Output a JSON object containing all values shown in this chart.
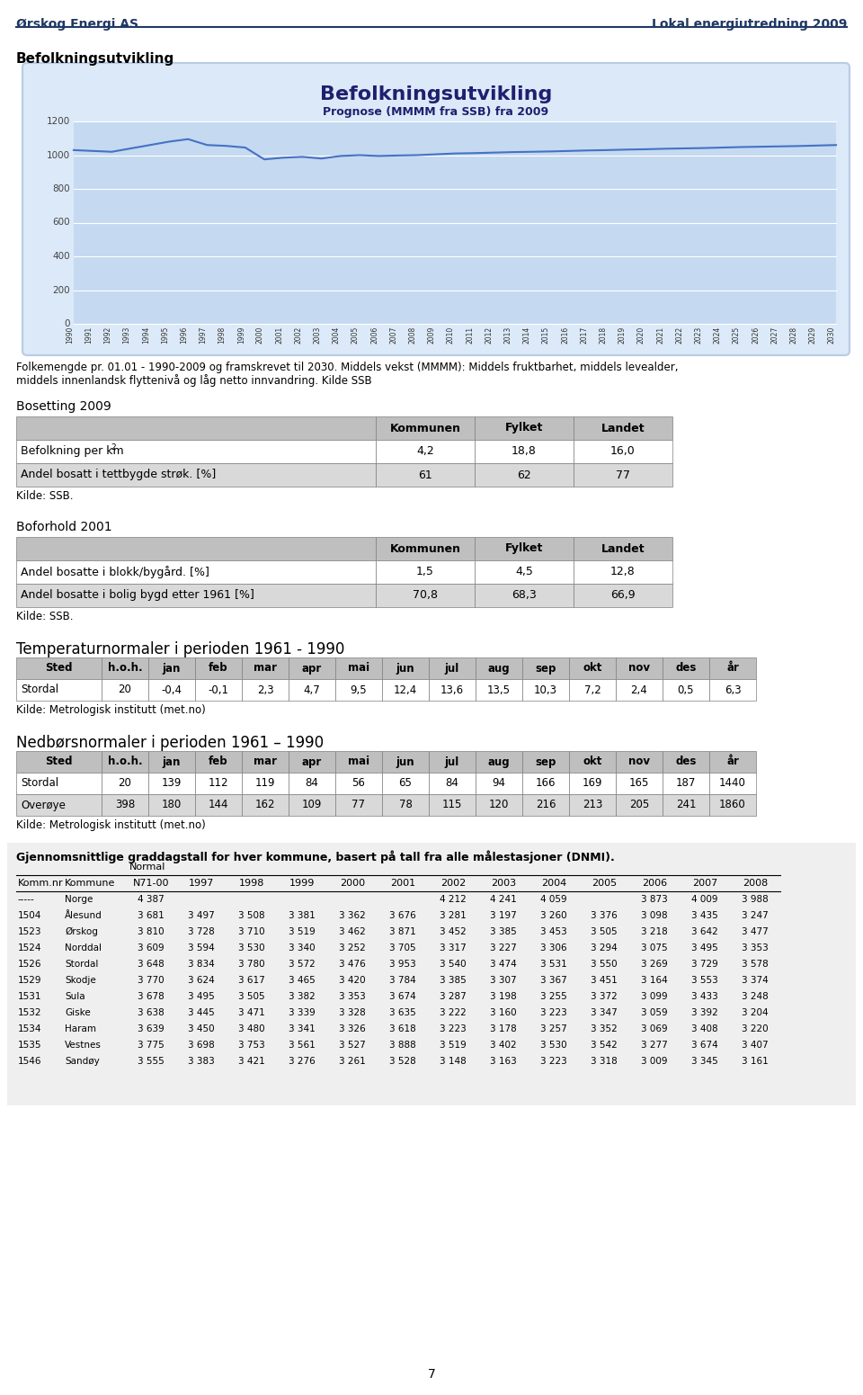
{
  "header_left": "Ørskog Energi AS",
  "header_right": "Lokal energiutredning 2009",
  "section1_title": "Befolkningsutvikling",
  "chart_title": "Befolkningsutvikling",
  "chart_subtitle": "Prognose (MMMM fra SSB) fra 2009",
  "chart_years": [
    1990,
    1991,
    1992,
    1993,
    1994,
    1995,
    1996,
    1997,
    1998,
    1999,
    2000,
    2001,
    2002,
    2003,
    2004,
    2005,
    2006,
    2007,
    2008,
    2009,
    2010,
    2011,
    2012,
    2013,
    2014,
    2015,
    2016,
    2017,
    2018,
    2019,
    2020,
    2021,
    2022,
    2023,
    2024,
    2025,
    2026,
    2027,
    2028,
    2029,
    2030
  ],
  "chart_values": [
    1030,
    1025,
    1020,
    1040,
    1060,
    1080,
    1095,
    1060,
    1055,
    1045,
    975,
    985,
    990,
    980,
    995,
    1000,
    995,
    998,
    1000,
    1005,
    1010,
    1012,
    1015,
    1018,
    1020,
    1022,
    1025,
    1028,
    1030,
    1033,
    1035,
    1038,
    1040,
    1042,
    1045,
    1048,
    1050,
    1052,
    1054,
    1057,
    1060
  ],
  "chart_ylim": [
    0,
    1200
  ],
  "chart_yticks": [
    0,
    200,
    400,
    600,
    800,
    1000,
    1200
  ],
  "chart_bg": "#c5d9f1",
  "chart_line_color": "#4472c4",
  "chart_outer_bg": "#dce9f8",
  "caption_text1": "Folkemengde pr. 01.01 - 1990-2009 og framskrevet til 2030. Middels vekst (MMMM): Middels fruktbarhet, middels levealder,",
  "caption_text2": "middels innenlandsk flyttenivå og låg netto innvandring. Kilde SSB",
  "bosetting_title": "Bosetting 2009",
  "bosetting_headers": [
    "",
    "Kommunen",
    "Fylket",
    "Landet"
  ],
  "bosetting_rows": [
    [
      "Befolkning per km²",
      "4,2",
      "18,8",
      "16,0"
    ],
    [
      "Andel bosatt i tettbygde strøk. [%]",
      "61",
      "62",
      "77"
    ]
  ],
  "bosetting_kilde": "Kilde: SSB.",
  "boforhold_title": "Boforhold 2001",
  "boforhold_headers": [
    "",
    "Kommunen",
    "Fylket",
    "Landet"
  ],
  "boforhold_rows": [
    [
      "Andel bosatte i blokk/bygård. [%]",
      "1,5",
      "4,5",
      "12,8"
    ],
    [
      "Andel bosatte i bolig bygd etter 1961 [%]",
      "70,8",
      "68,3",
      "66,9"
    ]
  ],
  "boforhold_kilde": "Kilde: SSB.",
  "temp_title": "Temperaturnormaler i perioden 1961 - 1990",
  "temp_headers": [
    "Sted",
    "h.o.h.",
    "jan",
    "feb",
    "mar",
    "apr",
    "mai",
    "jun",
    "jul",
    "aug",
    "sep",
    "okt",
    "nov",
    "des",
    "år"
  ],
  "temp_rows": [
    [
      "Stordal",
      "20",
      "-0,4",
      "-0,1",
      "2,3",
      "4,7",
      "9,5",
      "12,4",
      "13,6",
      "13,5",
      "10,3",
      "7,2",
      "2,4",
      "0,5",
      "6,3"
    ]
  ],
  "temp_kilde": "Kilde: Metrologisk institutt (met.no)",
  "nedbor_title": "Nedbørsnormaler i perioden 1961 – 1990",
  "nedbor_headers": [
    "Sted",
    "h.o.h.",
    "jan",
    "feb",
    "mar",
    "apr",
    "mai",
    "jun",
    "jul",
    "aug",
    "sep",
    "okt",
    "nov",
    "des",
    "år"
  ],
  "nedbor_rows": [
    [
      "Stordal",
      "20",
      "139",
      "112",
      "119",
      "84",
      "56",
      "65",
      "84",
      "94",
      "166",
      "169",
      "165",
      "187",
      "1440"
    ],
    [
      "Overøye",
      "398",
      "180",
      "144",
      "162",
      "109",
      "77",
      "78",
      "115",
      "120",
      "216",
      "213",
      "205",
      "241",
      "1860"
    ]
  ],
  "nedbor_kilde": "Kilde: Metrologisk institutt (met.no)",
  "grad_title": "Gjennomsnittlige graddagstall for hver kommune, basert på tall fra alle målestasjoner (DNMI).",
  "grad_normal_label": "Normal",
  "grad_headers": [
    "Komm.nr",
    "Kommune",
    "N71-00",
    "1997",
    "1998",
    "1999",
    "2000",
    "2001",
    "2002",
    "2003",
    "2004",
    "2005",
    "2006",
    "2007",
    "2008"
  ],
  "grad_rows": [
    [
      "-----",
      "Norge",
      "4 387",
      "",
      "",
      "",
      "",
      "",
      "4 212",
      "4 241",
      "4 059",
      "",
      "3 873",
      "4 009",
      "3 988"
    ],
    [
      "1504",
      "Ålesund",
      "3 681",
      "3 497",
      "3 508",
      "3 381",
      "3 362",
      "3 676",
      "3 281",
      "3 197",
      "3 260",
      "3 376",
      "3 098",
      "3 435",
      "3 247"
    ],
    [
      "1523",
      "Ørskog",
      "3 810",
      "3 728",
      "3 710",
      "3 519",
      "3 462",
      "3 871",
      "3 452",
      "3 385",
      "3 453",
      "3 505",
      "3 218",
      "3 642",
      "3 477"
    ],
    [
      "1524",
      "Norddal",
      "3 609",
      "3 594",
      "3 530",
      "3 340",
      "3 252",
      "3 705",
      "3 317",
      "3 227",
      "3 306",
      "3 294",
      "3 075",
      "3 495",
      "3 353"
    ],
    [
      "1526",
      "Stordal",
      "3 648",
      "3 834",
      "3 780",
      "3 572",
      "3 476",
      "3 953",
      "3 540",
      "3 474",
      "3 531",
      "3 550",
      "3 269",
      "3 729",
      "3 578"
    ],
    [
      "1529",
      "Skodje",
      "3 770",
      "3 624",
      "3 617",
      "3 465",
      "3 420",
      "3 784",
      "3 385",
      "3 307",
      "3 367",
      "3 451",
      "3 164",
      "3 553",
      "3 374"
    ],
    [
      "1531",
      "Sula",
      "3 678",
      "3 495",
      "3 505",
      "3 382",
      "3 353",
      "3 674",
      "3 287",
      "3 198",
      "3 255",
      "3 372",
      "3 099",
      "3 433",
      "3 248"
    ],
    [
      "1532",
      "Giske",
      "3 638",
      "3 445",
      "3 471",
      "3 339",
      "3 328",
      "3 635",
      "3 222",
      "3 160",
      "3 223",
      "3 347",
      "3 059",
      "3 392",
      "3 204"
    ],
    [
      "1534",
      "Haram",
      "3 639",
      "3 450",
      "3 480",
      "3 341",
      "3 326",
      "3 618",
      "3 223",
      "3 178",
      "3 257",
      "3 352",
      "3 069",
      "3 408",
      "3 220"
    ],
    [
      "1535",
      "Vestnes",
      "3 775",
      "3 698",
      "3 753",
      "3 561",
      "3 527",
      "3 888",
      "3 519",
      "3 402",
      "3 530",
      "3 542",
      "3 277",
      "3 674",
      "3 407"
    ],
    [
      "1546",
      "Sandøy",
      "3 555",
      "3 383",
      "3 421",
      "3 276",
      "3 261",
      "3 528",
      "3 148",
      "3 163",
      "3 223",
      "3 318",
      "3 009",
      "3 345",
      "3 161"
    ]
  ],
  "page_number": "7",
  "bg_color": "#ffffff",
  "text_color": "#000000",
  "header_line_color": "#1f3864",
  "table_header_bg": "#bfbfbf",
  "table_row0_bg": "#ffffff",
  "table_row1_bg": "#d9d9d9",
  "table_border_color": "#7f7f7f"
}
